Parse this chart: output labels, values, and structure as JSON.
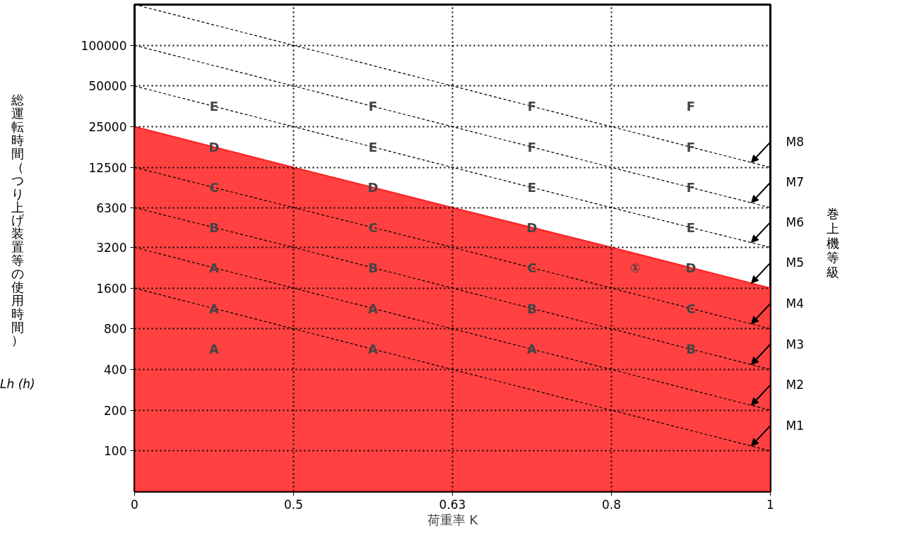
{
  "chart_data": {
    "type": "line",
    "xlabel": "荷重率 K",
    "ylabel": "総運転時間（つり上げ装置等の使用時間）",
    "log": "y",
    "categories": [
      "0",
      "0.5",
      "0.63",
      "0.8",
      "1"
    ],
    "ylim": [
      50,
      200000
    ],
    "yticks": [
      100,
      200,
      400,
      800,
      1600,
      3200,
      6300,
      12500,
      25000,
      50000,
      100000
    ],
    "grid": true,
    "line_style": "dashed",
    "series": [
      {
        "name": "M8",
        "color": "#000000",
        "values": [
          200000,
          100000,
          50000,
          25000,
          12500
        ]
      },
      {
        "name": "M7",
        "color": "#000000",
        "values": [
          100000,
          50000,
          25000,
          12500,
          6300
        ]
      },
      {
        "name": "M6",
        "color": "#000000",
        "values": [
          50000,
          25000,
          12500,
          6300,
          3200
        ]
      },
      {
        "name": "M5",
        "type": "area",
        "color": "#ff2020",
        "values": [
          25000,
          12500,
          6300,
          3200,
          1600
        ]
      },
      {
        "name": "M4",
        "color": "#000000",
        "values": [
          12500,
          6300,
          3200,
          1600,
          800
        ]
      },
      {
        "name": "M3",
        "color": "#000000",
        "values": [
          6300,
          3200,
          1600,
          800,
          400
        ]
      },
      {
        "name": "M2",
        "color": "#000000",
        "values": [
          3200,
          1600,
          800,
          400,
          200
        ]
      },
      {
        "name": "M1",
        "color": "#000000",
        "values": [
          1600,
          800,
          400,
          200,
          100
        ]
      }
    ],
    "annotations": [
      "Lh (h)",
      "巻上機等級",
      "E",
      "F",
      "F",
      "F",
      "D",
      "E",
      "F",
      "F",
      "C",
      "D",
      "E",
      "F",
      "B",
      "C",
      "D",
      "E",
      "A",
      "B",
      "C",
      "①",
      "D",
      "A",
      "A",
      "B",
      "C",
      "A",
      "A",
      "A",
      "B"
    ]
  }
}
